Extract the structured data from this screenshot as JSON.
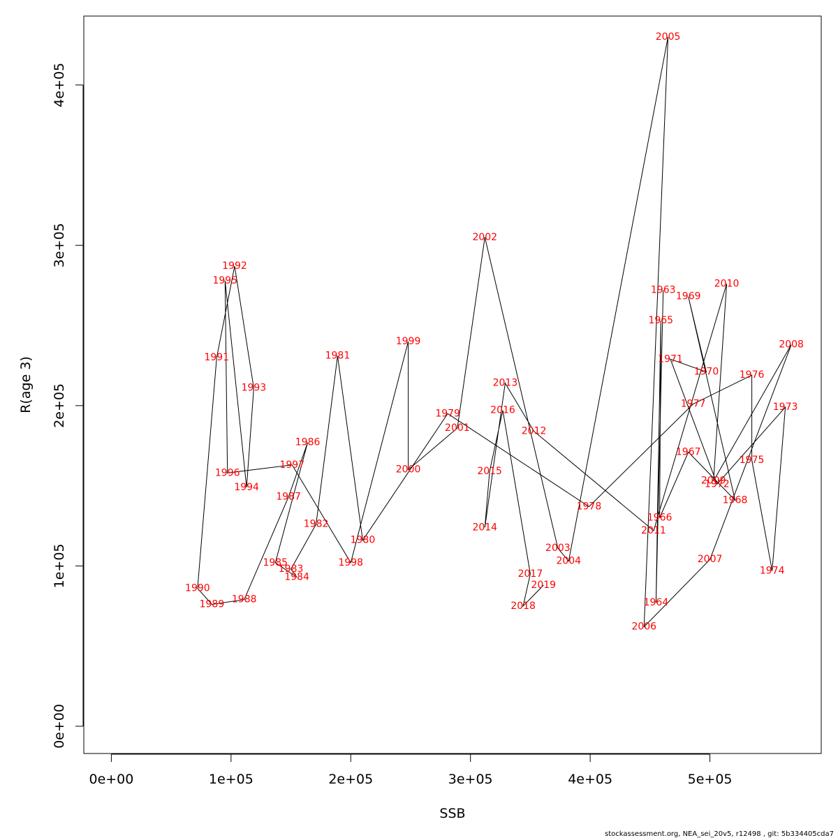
{
  "chart_data": {
    "type": "line",
    "title": "",
    "xlabel": "SSB",
    "ylabel": "R(age 3)",
    "xlim": [
      -23000,
      593000
    ],
    "ylim": [
      -17000,
      443000
    ],
    "xticks": [
      {
        "value": 0,
        "label": "0e+00"
      },
      {
        "value": 100000,
        "label": "1e+05"
      },
      {
        "value": 200000,
        "label": "2e+05"
      },
      {
        "value": 300000,
        "label": "3e+05"
      },
      {
        "value": 400000,
        "label": "4e+05"
      },
      {
        "value": 500000,
        "label": "5e+05"
      }
    ],
    "yticks": [
      {
        "value": 0,
        "label": "0e+00"
      },
      {
        "value": 100000,
        "label": "1e+05"
      },
      {
        "value": 200000,
        "label": "2e+05"
      },
      {
        "value": 300000,
        "label": "3e+05"
      },
      {
        "value": 400000,
        "label": "4e+05"
      }
    ],
    "grid": false,
    "line_color": "#000000",
    "label_color": "#ff0000",
    "points": [
      {
        "year": "1963",
        "x": 461000,
        "y": 272000
      },
      {
        "year": "1964",
        "x": 455000,
        "y": 77000
      },
      {
        "year": "1965",
        "x": 459000,
        "y": 253000
      },
      {
        "year": "1966",
        "x": 458000,
        "y": 130000
      },
      {
        "year": "1967",
        "x": 482000,
        "y": 171000
      },
      {
        "year": "1968",
        "x": 521000,
        "y": 141000
      },
      {
        "year": "1969",
        "x": 482000,
        "y": 268000
      },
      {
        "year": "1970",
        "x": 497000,
        "y": 221000
      },
      {
        "year": "1971",
        "x": 467000,
        "y": 229000
      },
      {
        "year": "1972",
        "x": 506000,
        "y": 151000
      },
      {
        "year": "1973",
        "x": 563000,
        "y": 199000
      },
      {
        "year": "1974",
        "x": 552000,
        "y": 97000
      },
      {
        "year": "1975",
        "x": 535000,
        "y": 166000
      },
      {
        "year": "1976",
        "x": 535000,
        "y": 219000
      },
      {
        "year": "1977",
        "x": 486000,
        "y": 201000
      },
      {
        "year": "1978",
        "x": 399000,
        "y": 137000
      },
      {
        "year": "1979",
        "x": 281000,
        "y": 195000
      },
      {
        "year": "1980",
        "x": 210000,
        "y": 116000
      },
      {
        "year": "1981",
        "x": 189000,
        "y": 231000
      },
      {
        "year": "1982",
        "x": 171000,
        "y": 126000
      },
      {
        "year": "1983",
        "x": 150000,
        "y": 98000
      },
      {
        "year": "1984",
        "x": 155000,
        "y": 93000
      },
      {
        "year": "1985",
        "x": 137000,
        "y": 102000
      },
      {
        "year": "1986",
        "x": 164000,
        "y": 177000
      },
      {
        "year": "1987",
        "x": 148000,
        "y": 143000
      },
      {
        "year": "1988",
        "x": 111000,
        "y": 79000
      },
      {
        "year": "1989",
        "x": 84000,
        "y": 76000
      },
      {
        "year": "1990",
        "x": 72000,
        "y": 86000
      },
      {
        "year": "1991",
        "x": 88000,
        "y": 230000
      },
      {
        "year": "1992",
        "x": 103000,
        "y": 287000
      },
      {
        "year": "1993",
        "x": 119000,
        "y": 211000
      },
      {
        "year": "1994",
        "x": 113000,
        "y": 149000
      },
      {
        "year": "1995",
        "x": 95000,
        "y": 278000
      },
      {
        "year": "1996",
        "x": 97000,
        "y": 158000
      },
      {
        "year": "1997",
        "x": 151000,
        "y": 163000
      },
      {
        "year": "1998",
        "x": 200000,
        "y": 102000
      },
      {
        "year": "1999",
        "x": 248000,
        "y": 240000
      },
      {
        "year": "2000",
        "x": 248000,
        "y": 160000
      },
      {
        "year": "2001",
        "x": 289000,
        "y": 186000
      },
      {
        "year": "2002",
        "x": 312000,
        "y": 305000
      },
      {
        "year": "2003",
        "x": 373000,
        "y": 111000
      },
      {
        "year": "2004",
        "x": 382000,
        "y": 103000
      },
      {
        "year": "2005",
        "x": 465000,
        "y": 430000
      },
      {
        "year": "2006",
        "x": 445000,
        "y": 62000
      },
      {
        "year": "2007",
        "x": 500000,
        "y": 104000
      },
      {
        "year": "2008",
        "x": 568000,
        "y": 238000
      },
      {
        "year": "2009",
        "x": 503000,
        "y": 153000
      },
      {
        "year": "2010",
        "x": 514000,
        "y": 276000
      },
      {
        "year": "2011",
        "x": 453000,
        "y": 122000
      },
      {
        "year": "2012",
        "x": 353000,
        "y": 184000
      },
      {
        "year": "2013",
        "x": 329000,
        "y": 214000
      },
      {
        "year": "2014",
        "x": 312000,
        "y": 124000
      },
      {
        "year": "2015",
        "x": 316000,
        "y": 159000
      },
      {
        "year": "2016",
        "x": 327000,
        "y": 197000
      },
      {
        "year": "2017",
        "x": 350000,
        "y": 95000
      },
      {
        "year": "2018",
        "x": 344000,
        "y": 75000
      },
      {
        "year": "2019",
        "x": 361000,
        "y": 88000
      }
    ]
  },
  "footer": "stockassessment.org, NEA_sei_20v5, r12498 , git: 5b334405cda7"
}
